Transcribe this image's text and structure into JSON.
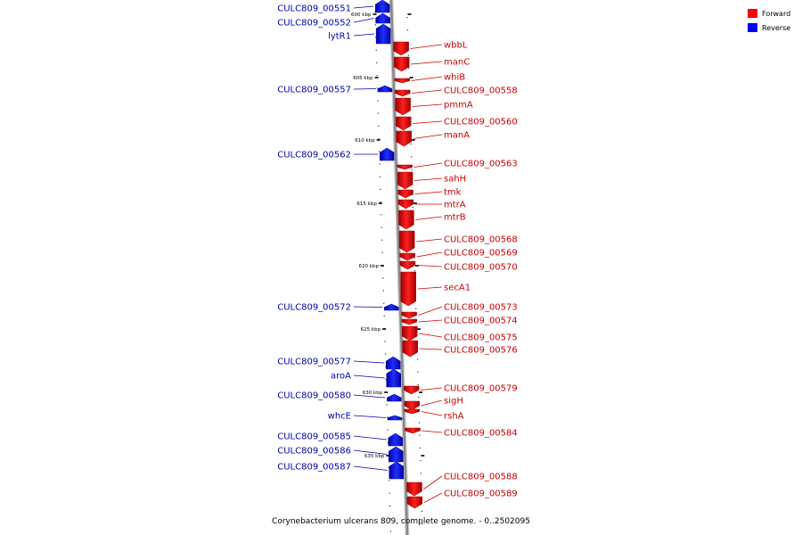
{
  "legend": {
    "forward_label": "Forward",
    "reverse_label": "Reverse",
    "forward_color": "#ff0000",
    "reverse_color": "#0000ff"
  },
  "colors": {
    "forward_text": "#cc0000",
    "reverse_text": "#0000b0",
    "backbone": "#888888"
  },
  "caption": "Corynebacterium ulcerans 809, complete genome. - 0..2502095",
  "ticks": [
    "600 kbp",
    "605 kbp",
    "610 kbp",
    "615 kbp",
    "620 kbp",
    "625 kbp",
    "630 kbp",
    "635 kbp"
  ],
  "forward_genes": [
    "wbbL",
    "manC",
    "whiB",
    "CULC809_00558",
    "pmmA",
    "CULC809_00560",
    "manA",
    "CULC809_00563",
    "sahH",
    "tmk",
    "mtrA",
    "mtrB",
    "CULC809_00568",
    "CULC809_00569",
    "CULC809_00570",
    "secA1",
    "CULC809_00573",
    "CULC809_00574",
    "CULC809_00575",
    "CULC809_00576",
    "CULC809_00579",
    "sigH",
    "rshA",
    "CULC809_00584",
    "CULC809_00588",
    "CULC809_00589"
  ],
  "reverse_genes": [
    "CULC809_00551",
    "CULC809_00552",
    "lytR1",
    "CULC809_00557",
    "CULC809_00562",
    "CULC809_00572",
    "CULC809_00577",
    "aroA",
    "CULC809_00580",
    "whcE",
    "CULC809_00585",
    "CULC809_00586",
    "CULC809_00587"
  ]
}
